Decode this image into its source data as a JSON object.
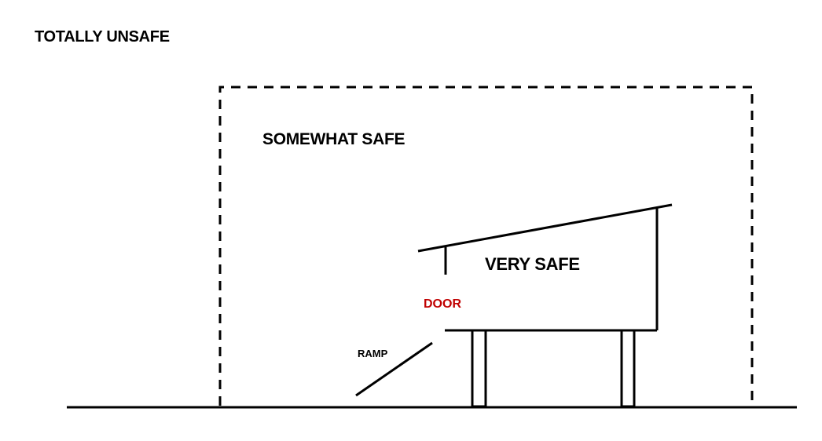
{
  "zones": {
    "outer_label": "TOTALLY UNSAFE",
    "middle_label": "SOMEWHAT SAFE",
    "inner_label": "VERY SAFE"
  },
  "parts": {
    "door_label": "DOOR",
    "ramp_label": "RAMP"
  },
  "colors": {
    "line": "#000000",
    "door_text": "#c00000",
    "background": "#ffffff"
  }
}
